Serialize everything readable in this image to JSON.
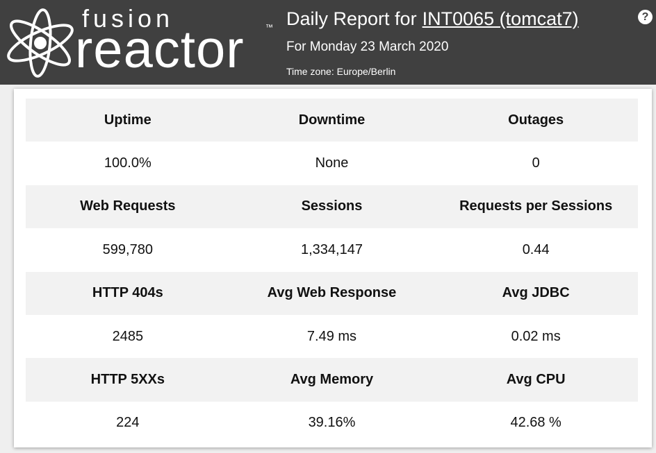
{
  "header": {
    "logo": {
      "top": "fusion",
      "bottom": "reactor",
      "tm": "™"
    },
    "title": "Daily Report for",
    "host": "INT0065 (tomcat7)",
    "help": "?",
    "date": "For Monday 23 March 2020",
    "timezone": "Time zone: Europe/Berlin"
  },
  "table": {
    "rows": [
      [
        "Uptime",
        "Downtime",
        "Outages"
      ],
      [
        "100.0%",
        "None",
        "0"
      ],
      [
        "Web Requests",
        "Sessions",
        "Requests per Sessions"
      ],
      [
        "599,780",
        "1,334,147",
        "0.44"
      ],
      [
        "HTTP 404s",
        "Avg Web Response",
        "Avg JDBC"
      ],
      [
        "2485",
        "7.49 ms",
        "0.02 ms"
      ],
      [
        "HTTP 5XXs",
        "Avg Memory",
        "Avg CPU"
      ],
      [
        "224",
        "39.16%",
        "42.68 %"
      ]
    ]
  }
}
